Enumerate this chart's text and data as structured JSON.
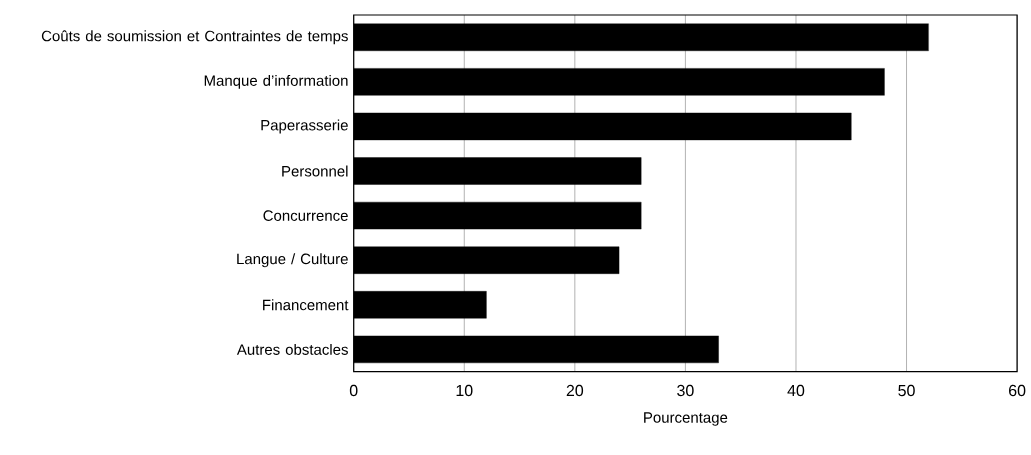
{
  "chart_data": {
    "type": "bar",
    "orientation": "horizontal",
    "categories": [
      "Coûts de soumission et Contraintes de temps",
      "Manque d’information",
      "Paperasserie",
      "Personnel",
      "Concurrence",
      "Langue / Culture",
      "Financement",
      "Autres obstacles"
    ],
    "values": [
      52,
      48,
      45,
      26,
      26,
      24,
      12,
      33
    ],
    "color": "#000000",
    "xlim": [
      0,
      60
    ],
    "xticks": [
      0,
      10,
      20,
      30,
      40,
      50,
      60
    ],
    "xlabel": "Pourcentage",
    "grid": "x"
  }
}
